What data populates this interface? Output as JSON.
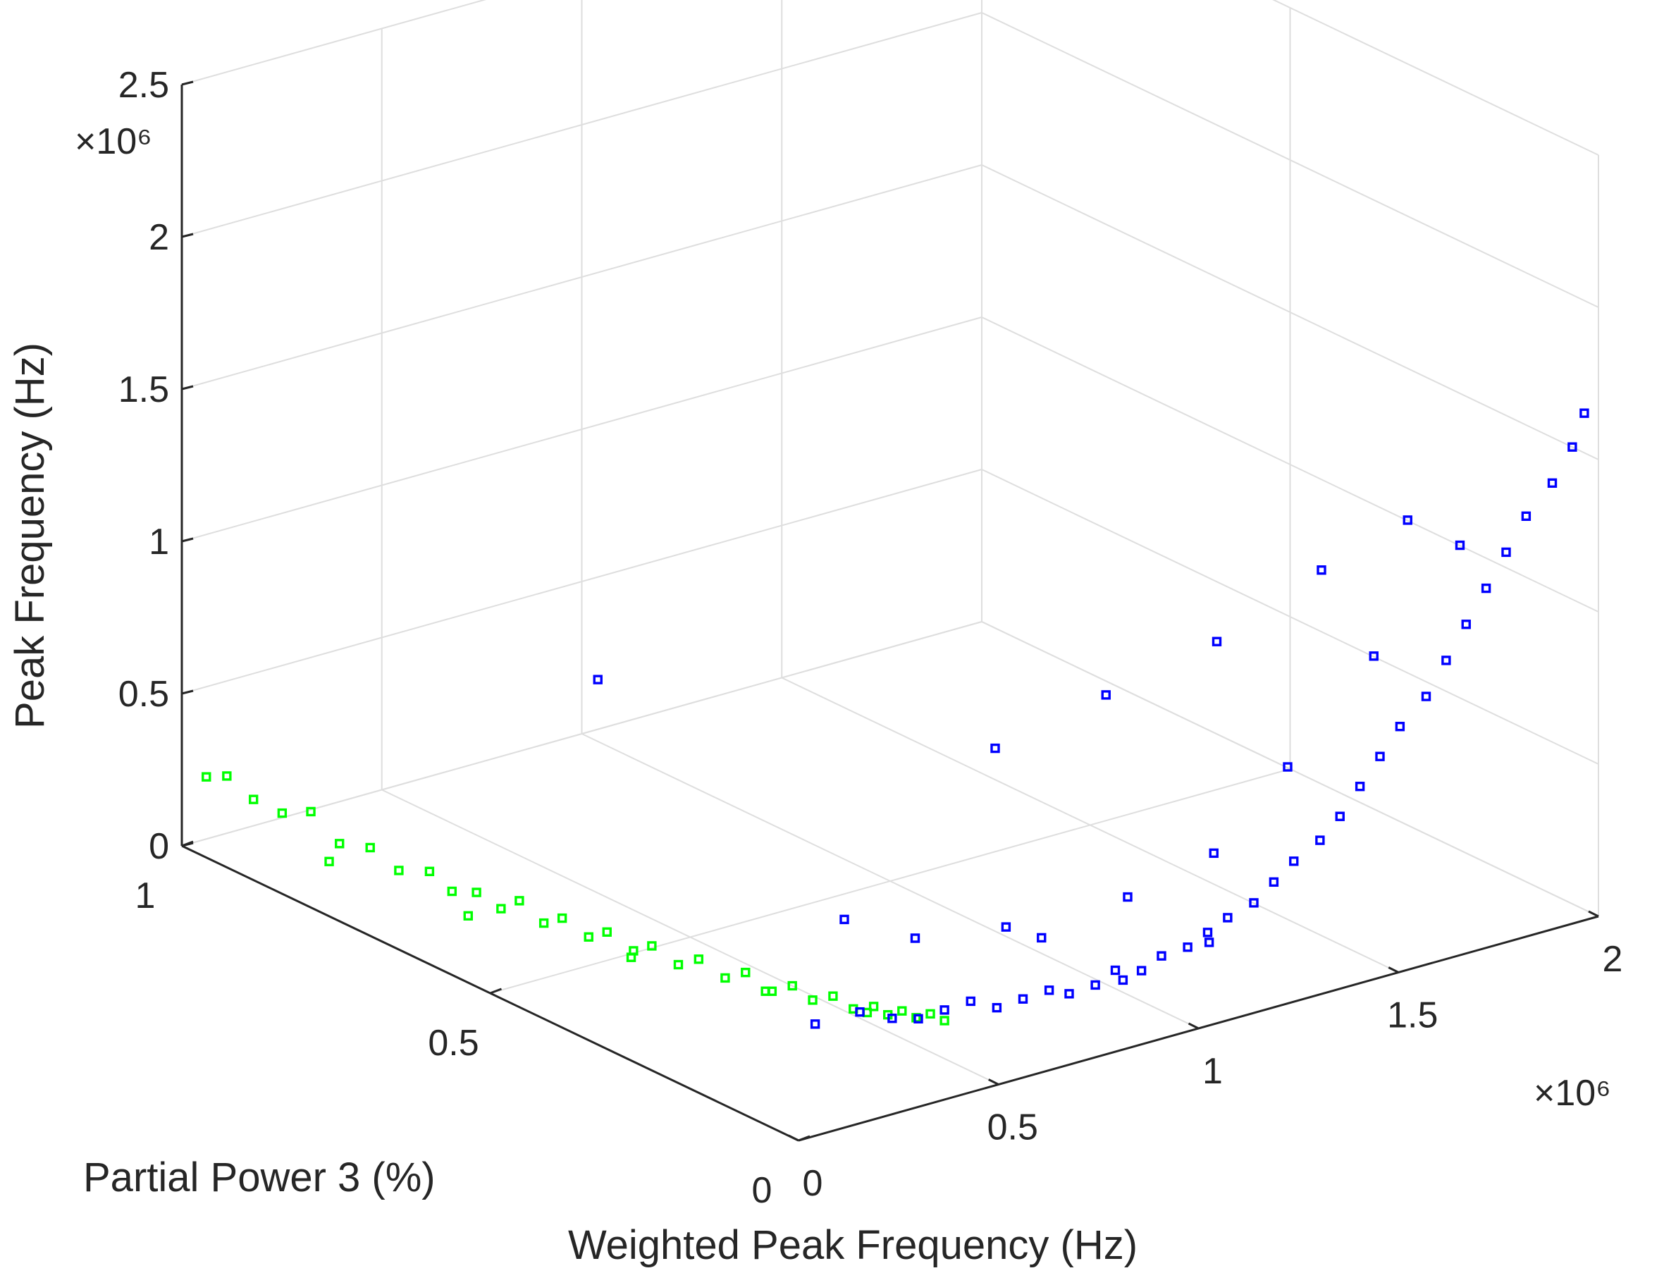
{
  "chart_data": {
    "type": "scatter",
    "view": "3d",
    "xlabel": "Weighted Peak Frequency (Hz)",
    "ylabel": "Partial Power 3 (%)",
    "zlabel": "Peak Frequency (Hz)",
    "x_exponent": "×10⁶",
    "z_exponent": "×10⁶",
    "xlim": [
      0,
      2000000
    ],
    "ylim": [
      0,
      1
    ],
    "zlim": [
      0,
      2500000
    ],
    "x_ticks": [
      0,
      500000,
      1000000,
      1500000,
      2000000
    ],
    "x_tick_labels": [
      "0",
      "0.5",
      "1",
      "1.5",
      "2"
    ],
    "y_ticks": [
      0,
      0.5,
      1
    ],
    "y_tick_labels": [
      "0",
      "0.5",
      "1"
    ],
    "z_ticks": [
      0,
      500000,
      1000000,
      1500000,
      2000000,
      2500000
    ],
    "z_tick_labels": [
      "0",
      "0.5",
      "1",
      "1.5",
      "2",
      "2.5"
    ],
    "grid": true,
    "marker": "square",
    "series": [
      {
        "color": "#00ff00",
        "values": [
          [
            15000,
            0.97,
            250000
          ],
          [
            20000,
            0.94,
            280000
          ],
          [
            25000,
            0.9,
            240000
          ],
          [
            35000,
            0.86,
            230000
          ],
          [
            45000,
            0.82,
            270000
          ],
          [
            55000,
            0.78,
            200000
          ],
          [
            70000,
            0.74,
            220000
          ],
          [
            80000,
            0.7,
            180000
          ],
          [
            95000,
            0.66,
            210000
          ],
          [
            105000,
            0.63,
            170000
          ],
          [
            120000,
            0.6,
            190000
          ],
          [
            135000,
            0.57,
            160000
          ],
          [
            150000,
            0.55,
            200000
          ],
          [
            165000,
            0.52,
            150000
          ],
          [
            180000,
            0.5,
            180000
          ],
          [
            200000,
            0.47,
            140000
          ],
          [
            215000,
            0.45,
            170000
          ],
          [
            235000,
            0.42,
            130000
          ],
          [
            250000,
            0.4,
            160000
          ],
          [
            270000,
            0.37,
            120000
          ],
          [
            290000,
            0.35,
            150000
          ],
          [
            310000,
            0.32,
            110000
          ],
          [
            330000,
            0.3,
            140000
          ],
          [
            350000,
            0.27,
            100000
          ],
          [
            370000,
            0.25,
            130000
          ],
          [
            390000,
            0.23,
            95000
          ],
          [
            410000,
            0.21,
            120000
          ],
          [
            430000,
            0.19,
            90000
          ],
          [
            450000,
            0.17,
            110000
          ],
          [
            470000,
            0.16,
            85000
          ],
          [
            490000,
            0.15,
            100000
          ],
          [
            510000,
            0.14,
            80000
          ],
          [
            530000,
            0.13,
            95000
          ],
          [
            550000,
            0.12,
            75000
          ],
          [
            60000,
            0.8,
            120000
          ],
          [
            130000,
            0.62,
            90000
          ],
          [
            260000,
            0.44,
            80000
          ],
          [
            380000,
            0.3,
            60000
          ],
          [
            480000,
            0.2,
            50000
          ]
        ]
      },
      {
        "color": "#0000ff",
        "values": [
          [
            400000,
            0.16,
            120000
          ],
          [
            450000,
            0.14,
            100000
          ],
          [
            500000,
            0.13,
            90000
          ],
          [
            550000,
            0.12,
            110000
          ],
          [
            600000,
            0.11,
            130000
          ],
          [
            650000,
            0.1,
            100000
          ],
          [
            700000,
            0.09,
            120000
          ],
          [
            750000,
            0.08,
            140000
          ],
          [
            800000,
            0.08,
            110000
          ],
          [
            850000,
            0.07,
            130000
          ],
          [
            900000,
            0.07,
            160000
          ],
          [
            950000,
            0.06,
            150000
          ],
          [
            1000000,
            0.06,
            180000
          ],
          [
            1050000,
            0.05,
            200000
          ],
          [
            1100000,
            0.05,
            230000
          ],
          [
            1150000,
            0.05,
            260000
          ],
          [
            1200000,
            0.04,
            300000
          ],
          [
            1250000,
            0.04,
            350000
          ],
          [
            1300000,
            0.04,
            400000
          ],
          [
            1350000,
            0.03,
            460000
          ],
          [
            1400000,
            0.03,
            520000
          ],
          [
            1450000,
            0.03,
            600000
          ],
          [
            1500000,
            0.03,
            680000
          ],
          [
            1550000,
            0.03,
            760000
          ],
          [
            1600000,
            0.02,
            850000
          ],
          [
            1650000,
            0.02,
            950000
          ],
          [
            1700000,
            0.02,
            1050000
          ],
          [
            1750000,
            0.02,
            1150000
          ],
          [
            1800000,
            0.02,
            1250000
          ],
          [
            1850000,
            0.02,
            1350000
          ],
          [
            1900000,
            0.01,
            1450000
          ],
          [
            1950000,
            0.01,
            1550000
          ],
          [
            1980000,
            0.01,
            1650000
          ],
          [
            1600000,
            0.05,
            1400000
          ],
          [
            1400000,
            0.06,
            1300000
          ],
          [
            1200000,
            0.1,
            1100000
          ],
          [
            1000000,
            0.15,
            950000
          ],
          [
            800000,
            0.2,
            800000
          ],
          [
            300000,
            0.52,
            900000
          ],
          [
            700000,
            0.06,
            350000
          ],
          [
            900000,
            0.05,
            420000
          ],
          [
            1100000,
            0.04,
            500000
          ],
          [
            1300000,
            0.05,
            700000
          ],
          [
            1500000,
            0.04,
            1000000
          ],
          [
            1700000,
            0.03,
            1300000
          ],
          [
            500000,
            0.25,
            300000
          ],
          [
            600000,
            0.2,
            250000
          ],
          [
            750000,
            0.15,
            280000
          ],
          [
            350000,
            0.2,
            60000
          ],
          [
            950000,
            0.09,
            90000
          ],
          [
            1150000,
            0.08,
            150000
          ]
        ]
      }
    ]
  }
}
